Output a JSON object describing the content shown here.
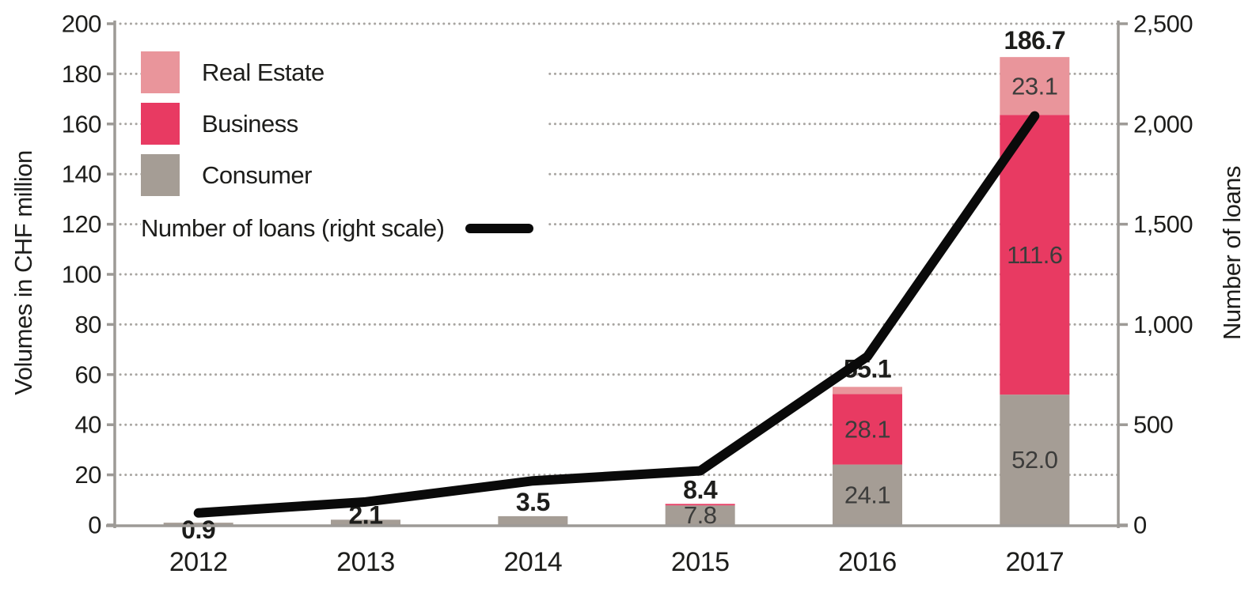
{
  "chart_data": {
    "type": "combo-stacked-bar-line",
    "categories": [
      "2012",
      "2013",
      "2014",
      "2015",
      "2016",
      "2017"
    ],
    "bar_series": [
      {
        "name": "Consumer",
        "color": "#a59d95",
        "values": [
          0.9,
          2.1,
          3.5,
          7.8,
          24.1,
          52.0
        ],
        "labels": [
          null,
          null,
          null,
          "7.8",
          "24.1",
          "52.0"
        ]
      },
      {
        "name": "Business",
        "color": "#e83a62",
        "values": [
          0,
          0,
          0,
          0.6,
          28.1,
          111.6
        ],
        "labels": [
          null,
          null,
          null,
          null,
          "28.1",
          "111.6"
        ]
      },
      {
        "name": "Real Estate",
        "color": "#e9959b",
        "values": [
          0,
          0,
          0,
          0,
          2.9,
          23.1
        ],
        "labels": [
          null,
          null,
          null,
          null,
          null,
          "23.1"
        ]
      }
    ],
    "totals": {
      "values": [
        0.9,
        2.1,
        3.5,
        8.4,
        55.1,
        186.7
      ],
      "labels": [
        "0.9",
        "2.1",
        "3.5",
        "8.4",
        "55.1",
        "186.7"
      ]
    },
    "line_series": {
      "name": "Number of loans (right scale)",
      "color": "#0a0a0a",
      "values_estimated": [
        60,
        115,
        220,
        270,
        840,
        2040
      ]
    },
    "left_axis": {
      "title": "Volumes in CHF million",
      "min": 0,
      "max": 200,
      "step": 20,
      "tick_labels": [
        "0",
        "20",
        "40",
        "60",
        "80",
        "100",
        "120",
        "140",
        "160",
        "180",
        "200"
      ]
    },
    "right_axis": {
      "title": "Number of loans",
      "min": 0,
      "max": 2500,
      "label_step": 500,
      "tick_labels": [
        "0",
        "500",
        "1,000",
        "1,500",
        "2,000",
        "2,500"
      ]
    },
    "legend": [
      {
        "label": "Real Estate",
        "color": "#e9959b",
        "type": "square"
      },
      {
        "label": "Business",
        "color": "#e83a62",
        "type": "square"
      },
      {
        "label": "Consumer",
        "color": "#a59d95",
        "type": "square"
      },
      {
        "label": "Number of loans (right scale)",
        "color": "#0a0a0a",
        "type": "line"
      }
    ],
    "grid": "dotted-horizontal-every-20-left-units",
    "legend_position": "top-left-inside",
    "total_label_offsets": [
      -20,
      -5,
      7,
      7,
      12,
      10
    ],
    "colors": {
      "grid": "#a8a5a1",
      "axis": "#9d9a96",
      "text": "#1d1d1b",
      "bar_label_text": "#3c3c3b"
    }
  }
}
